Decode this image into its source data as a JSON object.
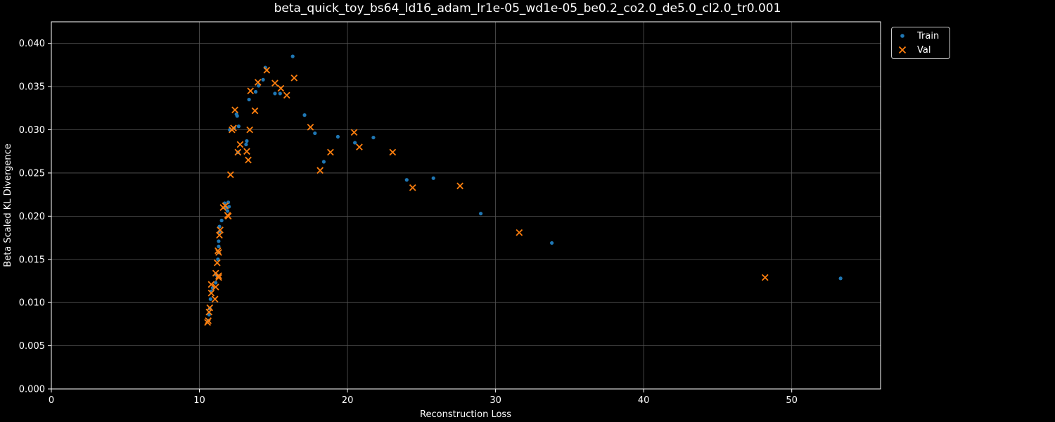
{
  "chart_data": {
    "type": "scatter",
    "title": "beta_quick_toy_bs64_ld16_adam_lr1e-05_wd1e-05_be0.2_co2.0_de5.0_cl2.0_tr0.001",
    "xlabel": "Reconstruction Loss",
    "ylabel": "Beta Scaled KL Divergence",
    "xlim": [
      0,
      56
    ],
    "ylim": [
      0,
      0.0425
    ],
    "xticks": [
      0,
      10,
      20,
      30,
      40,
      50
    ],
    "xtick_labels": [
      "0",
      "10",
      "20",
      "30",
      "40",
      "50"
    ],
    "yticks": [
      0.0,
      0.005,
      0.01,
      0.015,
      0.02,
      0.025,
      0.03,
      0.035,
      0.04
    ],
    "ytick_labels": [
      "0.000",
      "0.005",
      "0.010",
      "0.015",
      "0.020",
      "0.025",
      "0.030",
      "0.035",
      "0.040"
    ],
    "grid": true,
    "legend_position": "outside-upper-right",
    "colors": {
      "background": "#000000",
      "axes": "#ffffff",
      "grid": "#555555",
      "train": "#1f77b4",
      "val": "#ff7f0e"
    },
    "series": [
      {
        "name": "Train",
        "marker": "dot",
        "points": [
          [
            10.6,
            0.0079
          ],
          [
            10.65,
            0.0086
          ],
          [
            10.7,
            0.0093
          ],
          [
            10.75,
            0.0104
          ],
          [
            10.8,
            0.0113
          ],
          [
            10.9,
            0.0117
          ],
          [
            11.1,
            0.0123
          ],
          [
            11.1,
            0.0133
          ],
          [
            11.2,
            0.0131
          ],
          [
            11.25,
            0.015
          ],
          [
            11.3,
            0.0158
          ],
          [
            11.3,
            0.0165
          ],
          [
            11.3,
            0.0171
          ],
          [
            11.35,
            0.0182
          ],
          [
            11.35,
            0.0188
          ],
          [
            11.5,
            0.0195
          ],
          [
            11.7,
            0.0215
          ],
          [
            11.8,
            0.021
          ],
          [
            11.9,
            0.0206
          ],
          [
            11.95,
            0.0216
          ],
          [
            12.0,
            0.0211
          ],
          [
            12.05,
            0.03
          ],
          [
            12.35,
            0.0302
          ],
          [
            12.5,
            0.0318
          ],
          [
            12.55,
            0.0316
          ],
          [
            12.6,
            0.0274
          ],
          [
            12.65,
            0.0304
          ],
          [
            13.15,
            0.0283
          ],
          [
            13.2,
            0.0287
          ],
          [
            13.35,
            0.0335
          ],
          [
            13.8,
            0.0344
          ],
          [
            14.0,
            0.0351
          ],
          [
            14.3,
            0.0358
          ],
          [
            14.45,
            0.0372
          ],
          [
            15.1,
            0.0342
          ],
          [
            15.45,
            0.0342
          ],
          [
            16.3,
            0.0385
          ],
          [
            17.1,
            0.0317
          ],
          [
            17.8,
            0.0296
          ],
          [
            18.4,
            0.0263
          ],
          [
            19.35,
            0.0292
          ],
          [
            20.5,
            0.0285
          ],
          [
            21.75,
            0.0291
          ],
          [
            24.0,
            0.0242
          ],
          [
            25.8,
            0.0244
          ],
          [
            29.0,
            0.0203
          ],
          [
            33.8,
            0.0169
          ],
          [
            53.3,
            0.0128
          ]
        ]
      },
      {
        "name": "Val",
        "marker": "x",
        "points": [
          [
            10.55,
            0.0077
          ],
          [
            10.6,
            0.0079
          ],
          [
            10.65,
            0.0089
          ],
          [
            10.7,
            0.0094
          ],
          [
            10.8,
            0.0111
          ],
          [
            10.8,
            0.0121
          ],
          [
            11.05,
            0.0104
          ],
          [
            11.1,
            0.0118
          ],
          [
            11.1,
            0.0134
          ],
          [
            11.3,
            0.0129
          ],
          [
            11.3,
            0.0131
          ],
          [
            11.2,
            0.0146
          ],
          [
            11.25,
            0.016
          ],
          [
            11.3,
            0.0158
          ],
          [
            11.35,
            0.0178
          ],
          [
            11.4,
            0.0184
          ],
          [
            11.6,
            0.021
          ],
          [
            11.75,
            0.0212
          ],
          [
            11.9,
            0.0201
          ],
          [
            11.95,
            0.02
          ],
          [
            12.1,
            0.0248
          ],
          [
            12.2,
            0.03
          ],
          [
            12.3,
            0.0302
          ],
          [
            12.4,
            0.0323
          ],
          [
            12.6,
            0.0274
          ],
          [
            12.75,
            0.0283
          ],
          [
            13.2,
            0.0275
          ],
          [
            13.3,
            0.0265
          ],
          [
            13.4,
            0.03
          ],
          [
            13.45,
            0.0345
          ],
          [
            13.75,
            0.0322
          ],
          [
            13.95,
            0.0355
          ],
          [
            14.55,
            0.0369
          ],
          [
            15.1,
            0.0354
          ],
          [
            15.5,
            0.0348
          ],
          [
            15.9,
            0.034
          ],
          [
            16.4,
            0.036
          ],
          [
            17.5,
            0.0303
          ],
          [
            18.15,
            0.0253
          ],
          [
            18.85,
            0.0274
          ],
          [
            20.45,
            0.0297
          ],
          [
            20.8,
            0.028
          ],
          [
            23.05,
            0.0274
          ],
          [
            24.4,
            0.0233
          ],
          [
            27.6,
            0.0235
          ],
          [
            31.6,
            0.0181
          ],
          [
            48.2,
            0.0129
          ]
        ]
      }
    ]
  }
}
